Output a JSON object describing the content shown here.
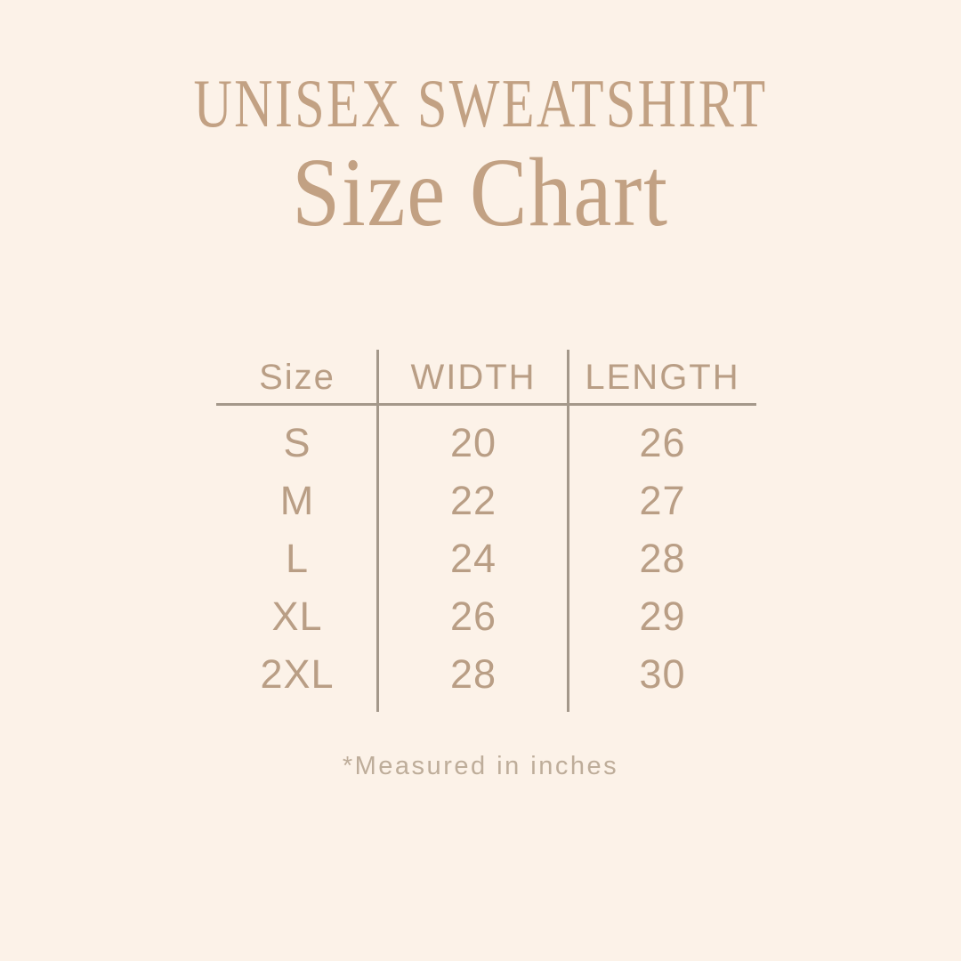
{
  "theme": {
    "background": "#fcf2e8",
    "title_color": "#c2a183",
    "table_text_color": "#b99e85",
    "line_color": "#a4988a",
    "note_color": "#bead9a"
  },
  "header": {
    "product_line": "UNISEX SWEATSHIRT",
    "title": "Size Chart"
  },
  "chart_data": {
    "type": "table",
    "title": "UNISEX SWEATSHIRT Size Chart",
    "columns": [
      "Size",
      "WIDTH",
      "LENGTH"
    ],
    "rows": [
      [
        "S",
        "20",
        "26"
      ],
      [
        "M",
        "22",
        "27"
      ],
      [
        "L",
        "24",
        "28"
      ],
      [
        "XL",
        "26",
        "29"
      ],
      [
        "2XL",
        "28",
        "30"
      ]
    ],
    "units": "inches",
    "note": "*Measured in inches"
  },
  "footer": {
    "note": "*Measured in inches"
  }
}
